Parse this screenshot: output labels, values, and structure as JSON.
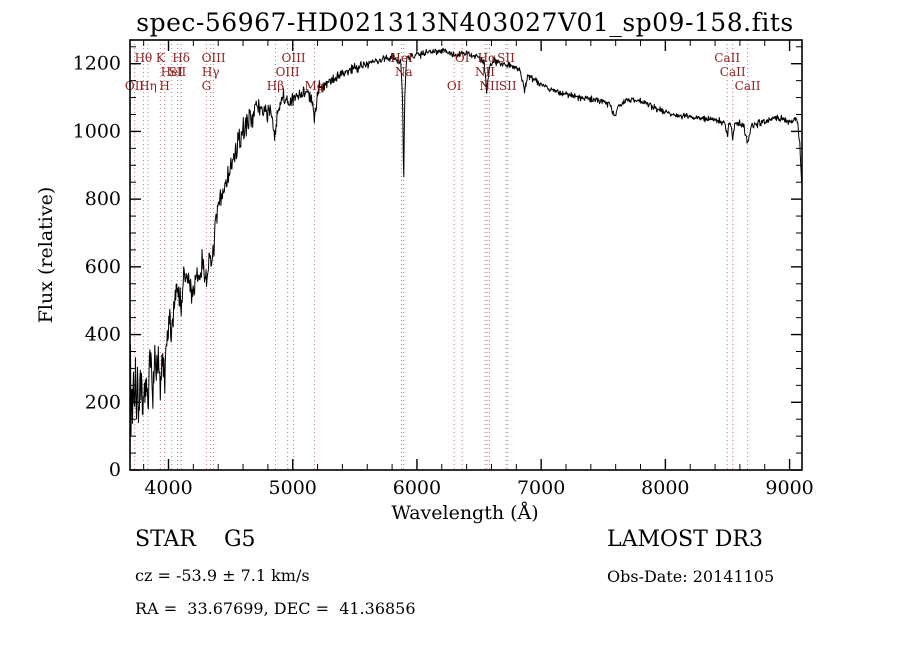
{
  "title": "spec-56967-HD021313N403027V01_sp09-158.fits",
  "annotations": {
    "class_label": "STAR    G5",
    "survey": "LAMOST DR3",
    "cz": "cz = -53.9 ± 7.1 km/s",
    "obs_date": "Obs-Date: 20141105",
    "radec": "RA =  33.67699, DEC =  41.36856"
  },
  "chart_data": {
    "type": "line",
    "title": "spec-56967-HD021313N403027V01_sp09-158.fits",
    "xlabel": "Wavelength (Å)",
    "ylabel": "Flux (relative)",
    "xlim": [
      3690,
      9100
    ],
    "ylim": [
      0,
      1270
    ],
    "x_major_ticks": [
      4000,
      5000,
      6000,
      7000,
      8000,
      9000
    ],
    "y_major_ticks": [
      0,
      200,
      400,
      600,
      800,
      1000,
      1200
    ],
    "x_minor_step": 200,
    "y_minor_step": 50,
    "grid": false,
    "legend": "none",
    "line_color": "#000000",
    "marker_line_color": "#cc7a7a",
    "marker_label_color": "#8b2323",
    "noise_seed": 7,
    "sample_step": 4,
    "spectral_lines": [
      {
        "label": "OII",
        "wl": 3727,
        "row": 3
      },
      {
        "label": "Hθ",
        "wl": 3798,
        "row": 1
      },
      {
        "label": "Hη",
        "wl": 3835,
        "row": 3
      },
      {
        "label": "K",
        "wl": 3934,
        "row": 1
      },
      {
        "label": "H",
        "wl": 3969,
        "row": 3
      },
      {
        "label": "HeI",
        "wl": 4026,
        "row": 2
      },
      {
        "label": "SII",
        "wl": 4072,
        "row": 2
      },
      {
        "label": "Hδ",
        "wl": 4102,
        "row": 1
      },
      {
        "label": "G",
        "wl": 4305,
        "row": 3
      },
      {
        "label": "Hγ",
        "wl": 4340,
        "row": 2
      },
      {
        "label": "OIII",
        "wl": 4363,
        "row": 1
      },
      {
        "label": "Hβ",
        "wl": 4861,
        "row": 3
      },
      {
        "label": "OIII",
        "wl": 4959,
        "row": 2
      },
      {
        "label": "OIII",
        "wl": 5007,
        "row": 1
      },
      {
        "label": "Mg",
        "wl": 5175,
        "row": 3
      },
      {
        "label": "HeI",
        "wl": 5876,
        "row": 1
      },
      {
        "label": "Na",
        "wl": 5894,
        "row": 2
      },
      {
        "label": "OI",
        "wl": 6300,
        "row": 3
      },
      {
        "label": "OI",
        "wl": 6364,
        "row": 1
      },
      {
        "label": "NII",
        "wl": 6548,
        "row": 2
      },
      {
        "label": "Hα",
        "wl": 6563,
        "row": 1
      },
      {
        "label": "NII",
        "wl": 6584,
        "row": 3
      },
      {
        "label": "SII",
        "wl": 6717,
        "row": 1
      },
      {
        "label": "SII",
        "wl": 6731,
        "row": 3
      },
      {
        "label": "CaII",
        "wl": 8498,
        "row": 1
      },
      {
        "label": "CaII",
        "wl": 8542,
        "row": 2
      },
      {
        "label": "CaII",
        "wl": 8662,
        "row": 3
      }
    ],
    "flux_envelope": [
      [
        3690,
        30
      ],
      [
        3694,
        360
      ],
      [
        3698,
        120
      ],
      [
        3703,
        300
      ],
      [
        3710,
        160
      ],
      [
        3718,
        310
      ],
      [
        3726,
        170
      ],
      [
        3734,
        260
      ],
      [
        3742,
        200
      ],
      [
        3750,
        280
      ],
      [
        3760,
        180
      ],
      [
        3772,
        240
      ],
      [
        3784,
        200
      ],
      [
        3796,
        150
      ],
      [
        3810,
        260
      ],
      [
        3822,
        220
      ],
      [
        3835,
        175
      ],
      [
        3848,
        300
      ],
      [
        3860,
        330
      ],
      [
        3875,
        250
      ],
      [
        3890,
        320
      ],
      [
        3905,
        280
      ],
      [
        3920,
        330
      ],
      [
        3934,
        200
      ],
      [
        3948,
        340
      ],
      [
        3958,
        300
      ],
      [
        3969,
        230
      ],
      [
        3980,
        360
      ],
      [
        3995,
        400
      ],
      [
        4010,
        430
      ],
      [
        4025,
        400
      ],
      [
        4040,
        480
      ],
      [
        4055,
        520
      ],
      [
        4070,
        540
      ],
      [
        4085,
        530
      ],
      [
        4102,
        470
      ],
      [
        4115,
        550
      ],
      [
        4130,
        560
      ],
      [
        4150,
        570
      ],
      [
        4170,
        545
      ],
      [
        4190,
        525
      ],
      [
        4210,
        540
      ],
      [
        4230,
        555
      ],
      [
        4250,
        575
      ],
      [
        4270,
        610
      ],
      [
        4290,
        590
      ],
      [
        4305,
        555
      ],
      [
        4320,
        630
      ],
      [
        4340,
        585
      ],
      [
        4355,
        640
      ],
      [
        4375,
        700
      ],
      [
        4400,
        770
      ],
      [
        4430,
        810
      ],
      [
        4460,
        850
      ],
      [
        4490,
        880
      ],
      [
        4520,
        910
      ],
      [
        4550,
        950
      ],
      [
        4580,
        980
      ],
      [
        4610,
        1010
      ],
      [
        4640,
        1030
      ],
      [
        4670,
        1050
      ],
      [
        4700,
        1065
      ],
      [
        4730,
        1070
      ],
      [
        4760,
        1065
      ],
      [
        4790,
        1060
      ],
      [
        4820,
        1055
      ],
      [
        4861,
        975
      ],
      [
        4880,
        1070
      ],
      [
        4900,
        1085
      ],
      [
        4925,
        1095
      ],
      [
        4950,
        1090
      ],
      [
        4975,
        1085
      ],
      [
        5000,
        1090
      ],
      [
        5030,
        1100
      ],
      [
        5060,
        1110
      ],
      [
        5090,
        1120
      ],
      [
        5120,
        1115
      ],
      [
        5150,
        1090
      ],
      [
        5175,
        1040
      ],
      [
        5200,
        1120
      ],
      [
        5230,
        1135
      ],
      [
        5260,
        1140
      ],
      [
        5300,
        1150
      ],
      [
        5350,
        1160
      ],
      [
        5400,
        1170
      ],
      [
        5450,
        1180
      ],
      [
        5500,
        1190
      ],
      [
        5550,
        1195
      ],
      [
        5600,
        1200
      ],
      [
        5650,
        1205
      ],
      [
        5700,
        1210
      ],
      [
        5750,
        1215
      ],
      [
        5800,
        1220
      ],
      [
        5840,
        1215
      ],
      [
        5870,
        1205
      ],
      [
        5885,
        1100
      ],
      [
        5893,
        830
      ],
      [
        5901,
        1100
      ],
      [
        5915,
        1210
      ],
      [
        5950,
        1220
      ],
      [
        6000,
        1228
      ],
      [
        6050,
        1232
      ],
      [
        6100,
        1236
      ],
      [
        6150,
        1238
      ],
      [
        6200,
        1240
      ],
      [
        6250,
        1235
      ],
      [
        6300,
        1222
      ],
      [
        6350,
        1228
      ],
      [
        6400,
        1230
      ],
      [
        6450,
        1225
      ],
      [
        6500,
        1218
      ],
      [
        6540,
        1200
      ],
      [
        6563,
        1115
      ],
      [
        6585,
        1195
      ],
      [
        6620,
        1210
      ],
      [
        6660,
        1205
      ],
      [
        6700,
        1200
      ],
      [
        6750,
        1195
      ],
      [
        6800,
        1190
      ],
      [
        6830,
        1180
      ],
      [
        6867,
        1120
      ],
      [
        6890,
        1165
      ],
      [
        6920,
        1160
      ],
      [
        6960,
        1150
      ],
      [
        7000,
        1140
      ],
      [
        7050,
        1130
      ],
      [
        7100,
        1120
      ],
      [
        7150,
        1115
      ],
      [
        7200,
        1110
      ],
      [
        7250,
        1105
      ],
      [
        7300,
        1100
      ],
      [
        7350,
        1098
      ],
      [
        7400,
        1095
      ],
      [
        7450,
        1092
      ],
      [
        7500,
        1090
      ],
      [
        7560,
        1080
      ],
      [
        7594,
        1040
      ],
      [
        7620,
        1075
      ],
      [
        7660,
        1085
      ],
      [
        7700,
        1090
      ],
      [
        7740,
        1095
      ],
      [
        7780,
        1092
      ],
      [
        7820,
        1088
      ],
      [
        7860,
        1080
      ],
      [
        7900,
        1072
      ],
      [
        7950,
        1065
      ],
      [
        8000,
        1058
      ],
      [
        8050,
        1052
      ],
      [
        8100,
        1048
      ],
      [
        8150,
        1045
      ],
      [
        8200,
        1042
      ],
      [
        8250,
        1040
      ],
      [
        8300,
        1038
      ],
      [
        8350,
        1036
      ],
      [
        8400,
        1034
      ],
      [
        8450,
        1030
      ],
      [
        8480,
        1025
      ],
      [
        8498,
        985
      ],
      [
        8515,
        1028
      ],
      [
        8530,
        1020
      ],
      [
        8542,
        975
      ],
      [
        8560,
        1025
      ],
      [
        8600,
        1022
      ],
      [
        8630,
        1018
      ],
      [
        8662,
        965
      ],
      [
        8690,
        1018
      ],
      [
        8730,
        1022
      ],
      [
        8780,
        1028
      ],
      [
        8830,
        1032
      ],
      [
        8880,
        1038
      ],
      [
        8930,
        1040
      ],
      [
        8980,
        1035
      ],
      [
        9020,
        1030
      ],
      [
        9060,
        1035
      ],
      [
        9085,
        950
      ],
      [
        9100,
        820
      ]
    ],
    "noise_profile": [
      [
        3690,
        75
      ],
      [
        3800,
        65
      ],
      [
        3900,
        60
      ],
      [
        4000,
        50
      ],
      [
        4200,
        45
      ],
      [
        4400,
        40
      ],
      [
        4600,
        35
      ],
      [
        4800,
        30
      ],
      [
        5000,
        24
      ],
      [
        5200,
        20
      ],
      [
        5400,
        17
      ],
      [
        5600,
        15
      ],
      [
        5800,
        13
      ],
      [
        6000,
        11
      ],
      [
        6300,
        10
      ],
      [
        6600,
        10
      ],
      [
        7000,
        10
      ],
      [
        7500,
        9
      ],
      [
        8000,
        9
      ],
      [
        8500,
        9
      ],
      [
        9000,
        11
      ],
      [
        9100,
        14
      ]
    ]
  }
}
